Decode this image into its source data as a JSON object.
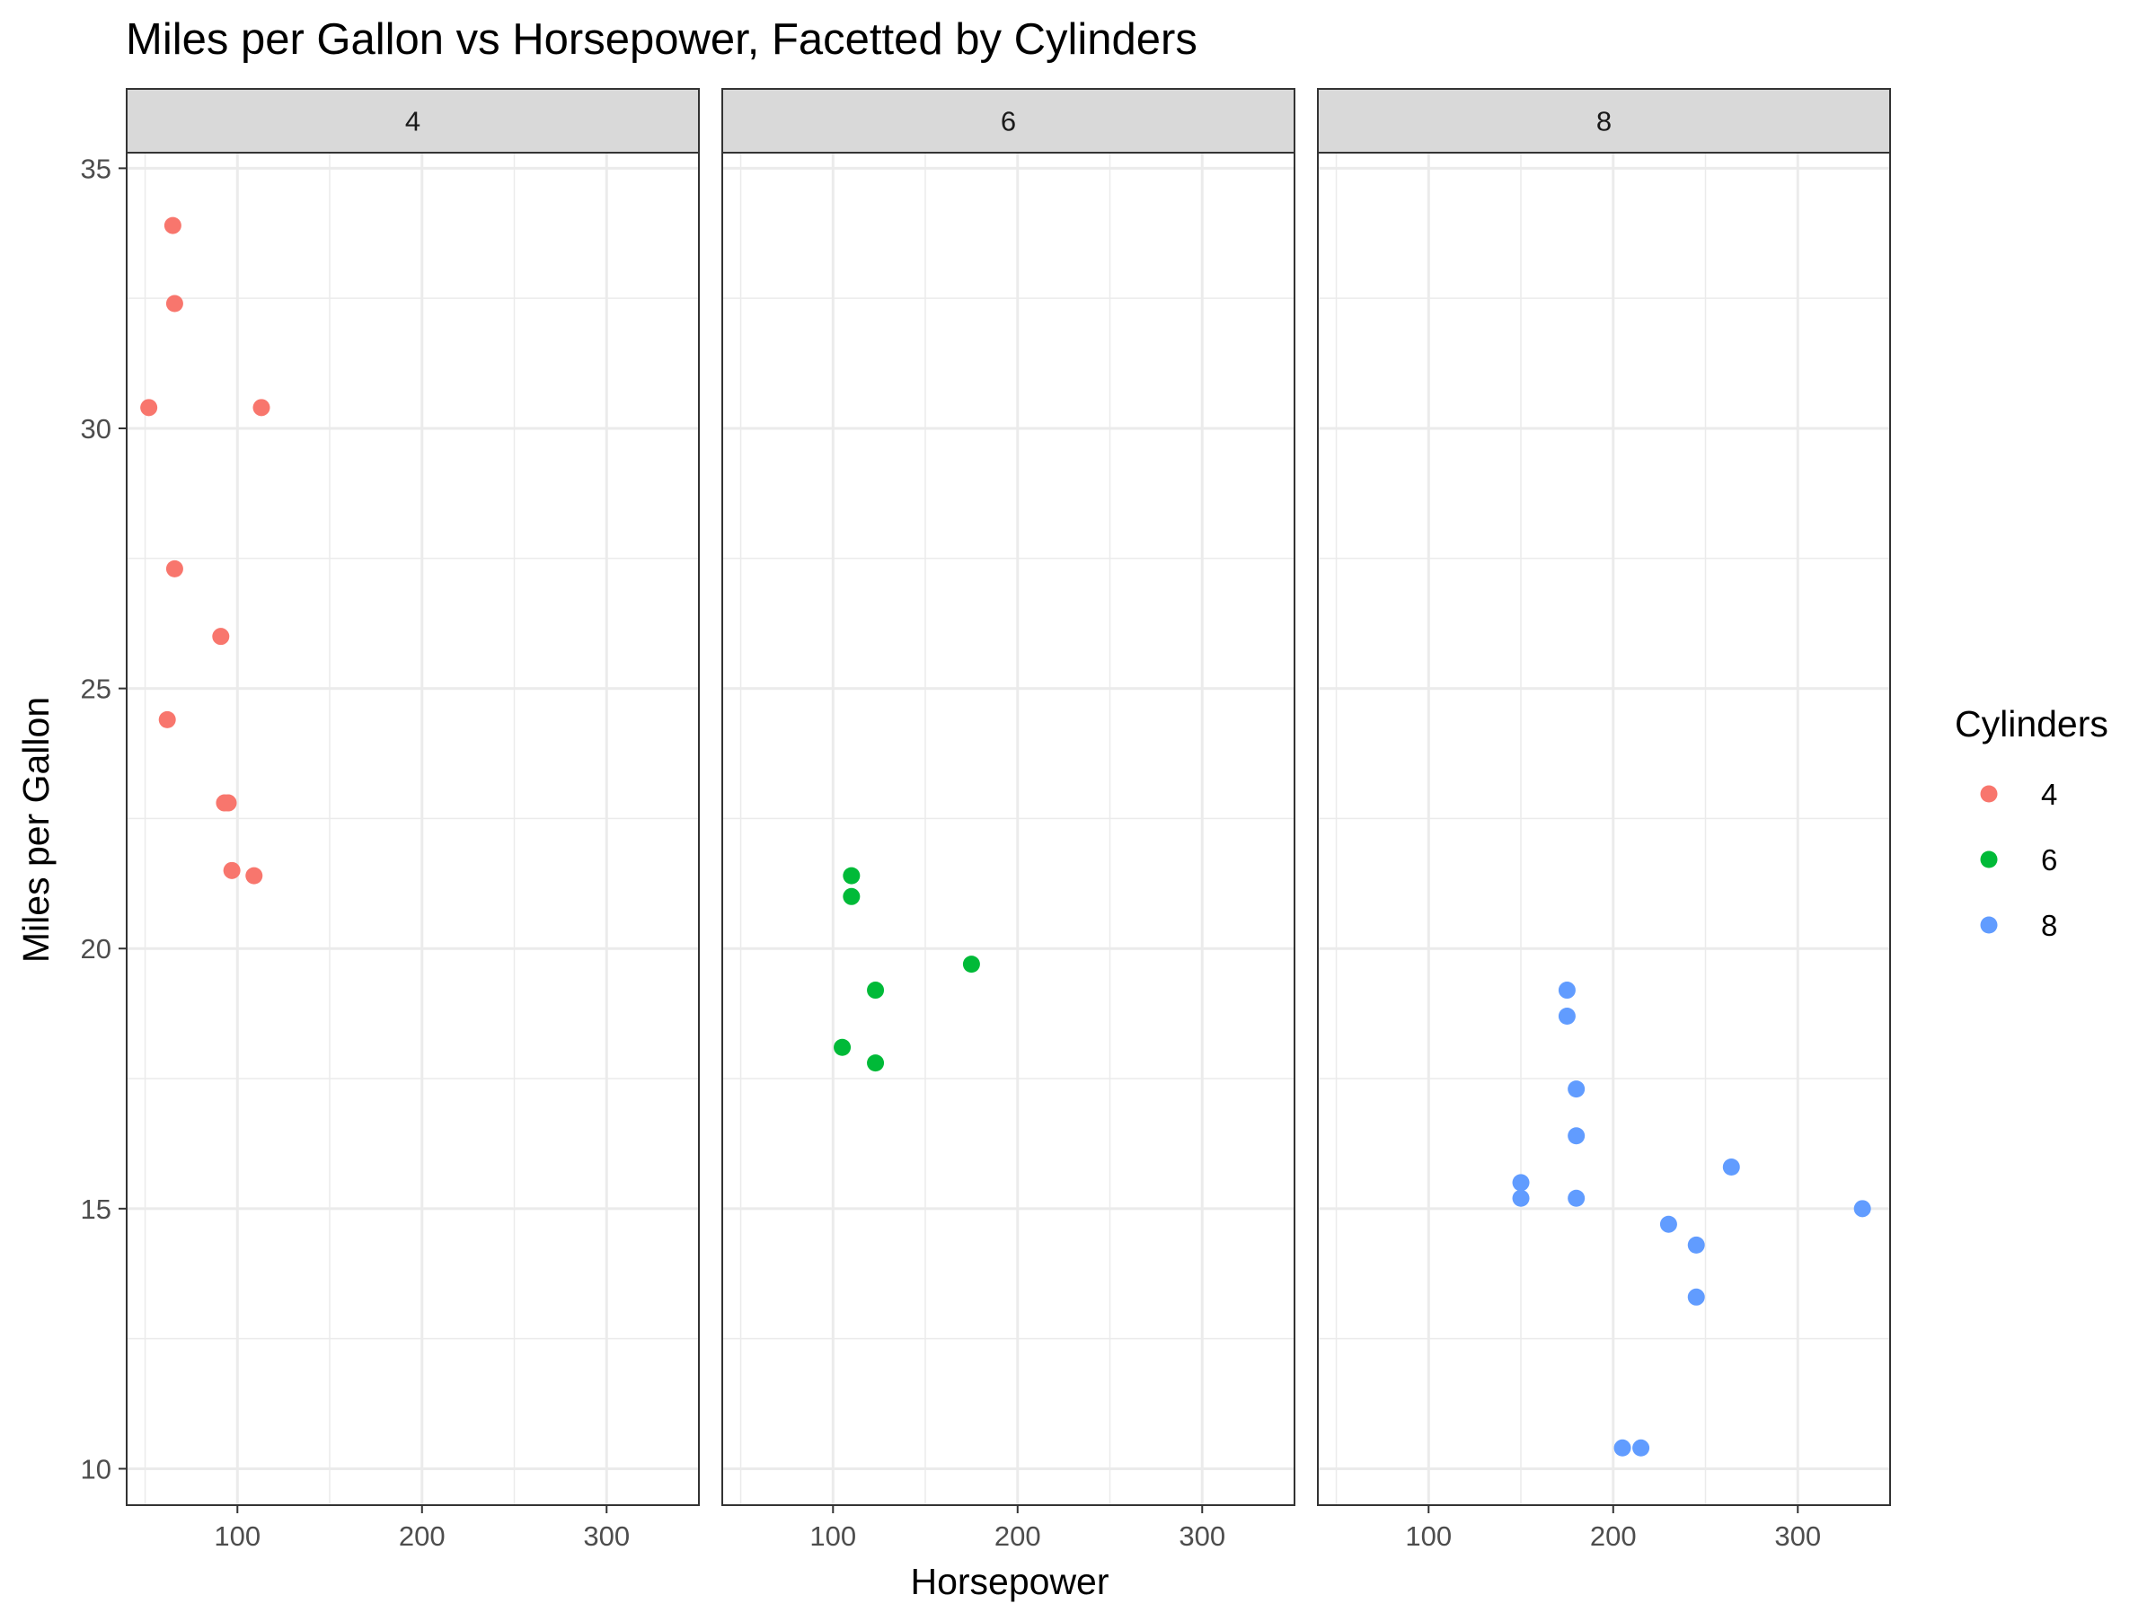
{
  "chart_data": {
    "type": "scatter",
    "title": "Miles per Gallon vs Horsepower, Facetted by Cylinders",
    "xlabel": "Horsepower",
    "ylabel": "Miles per Gallon",
    "xlim": [
      40,
      350
    ],
    "ylim": [
      9.3,
      35.3
    ],
    "x_ticks": [
      100,
      200,
      300
    ],
    "y_ticks": [
      10,
      15,
      20,
      25,
      30,
      35
    ],
    "grid": true,
    "legend": {
      "title": "Cylinders",
      "position": "right",
      "items": [
        {
          "label": "4",
          "color": "#F8766D"
        },
        {
          "label": "6",
          "color": "#00BA38"
        },
        {
          "label": "8",
          "color": "#619CFF"
        }
      ]
    },
    "facets": [
      {
        "label": "4",
        "color": "#F8766D",
        "points": [
          {
            "x": 52,
            "y": 30.4
          },
          {
            "x": 65,
            "y": 33.9
          },
          {
            "x": 66,
            "y": 32.4
          },
          {
            "x": 113,
            "y": 30.4
          },
          {
            "x": 66,
            "y": 27.3
          },
          {
            "x": 91,
            "y": 26.0
          },
          {
            "x": 62,
            "y": 24.4
          },
          {
            "x": 93,
            "y": 22.8
          },
          {
            "x": 95,
            "y": 22.8
          },
          {
            "x": 97,
            "y": 21.5
          },
          {
            "x": 109,
            "y": 21.4
          }
        ]
      },
      {
        "label": "6",
        "color": "#00BA38",
        "points": [
          {
            "x": 110,
            "y": 21.4
          },
          {
            "x": 110,
            "y": 21.0
          },
          {
            "x": 175,
            "y": 19.7
          },
          {
            "x": 123,
            "y": 19.2
          },
          {
            "x": 105,
            "y": 18.1
          },
          {
            "x": 123,
            "y": 17.8
          }
        ]
      },
      {
        "label": "8",
        "color": "#619CFF",
        "points": [
          {
            "x": 175,
            "y": 19.2
          },
          {
            "x": 175,
            "y": 18.7
          },
          {
            "x": 180,
            "y": 17.3
          },
          {
            "x": 180,
            "y": 16.4
          },
          {
            "x": 264,
            "y": 15.8
          },
          {
            "x": 150,
            "y": 15.5
          },
          {
            "x": 150,
            "y": 15.2
          },
          {
            "x": 180,
            "y": 15.2
          },
          {
            "x": 335,
            "y": 15.0
          },
          {
            "x": 230,
            "y": 14.7
          },
          {
            "x": 245,
            "y": 14.3
          },
          {
            "x": 245,
            "y": 13.3
          },
          {
            "x": 205,
            "y": 10.4
          },
          {
            "x": 215,
            "y": 10.4
          }
        ]
      }
    ]
  }
}
